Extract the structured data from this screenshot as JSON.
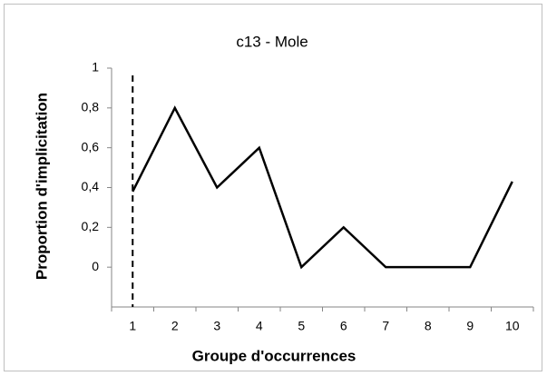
{
  "chart_data": {
    "type": "line",
    "title": "c13 - Mole",
    "x_label": "Groupe d'occurrences",
    "y_label": "Proportion d'implicitation",
    "categories": [
      "1",
      "2",
      "3",
      "4",
      "5",
      "6",
      "7",
      "8",
      "9",
      "10"
    ],
    "values": [
      0.38,
      0.8,
      0.4,
      0.6,
      0,
      0.2,
      0,
      0,
      0,
      0.43
    ],
    "color": "#000000",
    "ylim": [
      -0.2,
      1
    ],
    "yticks": [
      0,
      {
        "value": 0.2,
        "label": "0,2"
      },
      {
        "value": 0.4,
        "label": "0,4"
      },
      {
        "value": 0.6,
        "label": "0,6"
      },
      {
        "value": 0.8,
        "label": "0,8"
      },
      1
    ],
    "grid": false
  }
}
